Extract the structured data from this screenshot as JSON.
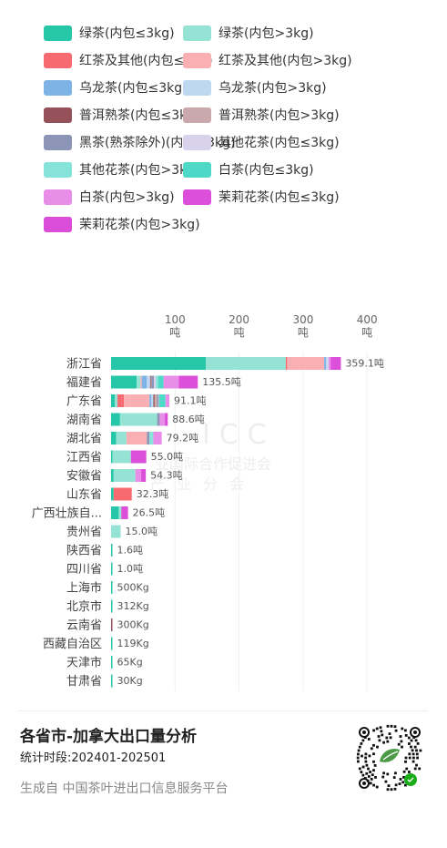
{
  "legend": [
    {
      "label": "绿茶(内包≤3kg)",
      "color": "#26c6a8"
    },
    {
      "label": "绿茶(内包>3kg)",
      "color": "#95e3d4"
    },
    {
      "label": "红茶及其他(内包≤3kg)",
      "color": "#f76a6f"
    },
    {
      "label": "红茶及其他(内包>3kg)",
      "color": "#fab0b3"
    },
    {
      "label": "乌龙茶(内包≤3kg)",
      "color": "#7eb3e6"
    },
    {
      "label": "乌龙茶(内包>3kg)",
      "color": "#bed8f2"
    },
    {
      "label": "普洱熟茶(内包≤3kg)",
      "color": "#96525b"
    },
    {
      "label": "普洱熟茶(内包>3kg)",
      "color": "#caa8ab"
    },
    {
      "label": "黑茶(熟茶除外)(内包≤3kg)",
      "color": "#8c95b5"
    },
    {
      "label": "其他花茶(内包≤3kg)",
      "color": "#d9d2ec"
    },
    {
      "label": "其他花茶(内包>3kg)",
      "color": "#86e3d9"
    },
    {
      "label": "白茶(内包≤3kg)",
      "color": "#4ed9c7"
    },
    {
      "label": "白茶(内包>3kg)",
      "color": "#e88de8"
    },
    {
      "label": "茉莉花茶(内包≤3kg)",
      "color": "#db4fdb"
    },
    {
      "label": "茉莉花茶(内包>3kg)",
      "color": "#d94dd9"
    }
  ],
  "chart_data": {
    "type": "bar",
    "orientation": "horizontal",
    "stacked": true,
    "unit": "吨",
    "xticks": [
      {
        "value": 100,
        "label": "100",
        "unit": "吨"
      },
      {
        "value": 200,
        "label": "200",
        "unit": "吨"
      },
      {
        "value": 300,
        "label": "300",
        "unit": "吨"
      },
      {
        "value": 400,
        "label": "400",
        "unit": "吨"
      }
    ],
    "xlim": [
      0,
      400
    ],
    "grid": true,
    "series_names": [
      "绿茶(内包≤3kg)",
      "绿茶(内包>3kg)",
      "红茶及其他(内包≤3kg)",
      "红茶及其他(内包>3kg)",
      "乌龙茶(内包≤3kg)",
      "乌龙茶(内包>3kg)",
      "普洱熟茶(内包≤3kg)",
      "普洱熟茶(内包>3kg)",
      "黑茶(熟茶除外)(内包≤3kg)",
      "其他花茶(内包≤3kg)",
      "其他花茶(内包>3kg)",
      "白茶(内包≤3kg)",
      "白茶(内包>3kg)",
      "茉莉花茶(内包≤3kg)",
      "茉莉花茶(内包>3kg)"
    ],
    "rows": [
      {
        "province": "浙江省",
        "total_label": "359.1吨",
        "segments": [
          148,
          125,
          2,
          58,
          3,
          2,
          0,
          0,
          0,
          2,
          0,
          0,
          3,
          16.1,
          0
        ]
      },
      {
        "province": "福建省",
        "total_label": "135.5吨",
        "segments": [
          40,
          6,
          0,
          2,
          8,
          5,
          1,
          1,
          4,
          3,
          4,
          8,
          24,
          29.5,
          0
        ]
      },
      {
        "province": "广东省",
        "total_label": "91.1吨",
        "segments": [
          6,
          4,
          10,
          40,
          3,
          3,
          2,
          4,
          2,
          1,
          0,
          10,
          6.1,
          0,
          0
        ]
      },
      {
        "province": "湖南省",
        "total_label": "88.6吨",
        "segments": [
          14,
          58,
          0,
          0,
          0,
          0,
          0,
          0,
          4,
          0,
          0,
          0,
          8,
          4.6,
          0
        ]
      },
      {
        "province": "湖北省",
        "total_label": "79.2吨",
        "segments": [
          8,
          16,
          0,
          32,
          0,
          0,
          0,
          0,
          4,
          0,
          6,
          0,
          13.2,
          0,
          0
        ]
      },
      {
        "province": "江西省",
        "total_label": "55.0吨",
        "segments": [
          2,
          29,
          0,
          0,
          0,
          0,
          0,
          0,
          0,
          0,
          0,
          0,
          0,
          24,
          0
        ]
      },
      {
        "province": "安徽省",
        "total_label": "54.3吨",
        "segments": [
          4,
          34,
          0,
          0,
          0,
          0,
          0,
          0,
          0,
          0,
          0,
          0,
          9,
          7.3,
          0
        ]
      },
      {
        "province": "山东省",
        "total_label": "32.3吨",
        "segments": [
          4,
          0,
          28.3,
          0,
          0,
          0,
          0,
          0,
          0,
          0,
          0,
          0,
          0,
          0,
          0
        ]
      },
      {
        "province": "广西壮族自...",
        "total_label": "26.5吨",
        "segments": [
          12,
          4,
          0,
          0,
          0,
          0,
          0,
          0,
          0,
          0,
          0,
          0,
          0,
          10.5,
          0
        ]
      },
      {
        "province": "贵州省",
        "total_label": "15.0吨",
        "segments": [
          0,
          15,
          0,
          0,
          0,
          0,
          0,
          0,
          0,
          0,
          0,
          0,
          0,
          0,
          0
        ]
      },
      {
        "province": "陕西省",
        "total_label": "1.6吨",
        "segments": [
          1.6,
          0,
          0,
          0,
          0,
          0,
          0,
          0,
          0,
          0,
          0,
          0,
          0,
          0,
          0
        ]
      },
      {
        "province": "四川省",
        "total_label": "1.0吨",
        "segments": [
          1,
          0,
          0,
          0,
          0,
          0,
          0,
          0,
          0,
          0,
          0,
          0,
          0,
          0,
          0
        ]
      },
      {
        "province": "上海市",
        "total_label": "500Kg",
        "segments": [
          0.5,
          0,
          0,
          0,
          0,
          0,
          0,
          0,
          0,
          0,
          0,
          0,
          0,
          0,
          0
        ]
      },
      {
        "province": "北京市",
        "total_label": "312Kg",
        "segments": [
          0.312,
          0,
          0,
          0,
          0,
          0,
          0,
          0,
          0,
          0,
          0,
          0,
          0,
          0,
          0
        ]
      },
      {
        "province": "云南省",
        "total_label": "300Kg",
        "segments": [
          0,
          0,
          0,
          0,
          0,
          0,
          0.3,
          0,
          0,
          0,
          0,
          0,
          0,
          0,
          0
        ]
      },
      {
        "province": "西藏自治区",
        "total_label": "119Kg",
        "segments": [
          0.119,
          0,
          0,
          0,
          0,
          0,
          0,
          0,
          0,
          0,
          0,
          0,
          0,
          0,
          0
        ]
      },
      {
        "province": "天津市",
        "total_label": "65Kg",
        "segments": [
          0.065,
          0,
          0,
          0,
          0,
          0,
          0,
          0,
          0,
          0,
          0,
          0,
          0,
          0,
          0
        ]
      },
      {
        "province": "甘肃省",
        "total_label": "30Kg",
        "segments": [
          0.03,
          0,
          0,
          0,
          0,
          0,
          0,
          0,
          0,
          0,
          0,
          0,
          0,
          0,
          0
        ]
      }
    ]
  },
  "watermark": {
    "line1": "ICC",
    "line2": "业国际合作促进会",
    "line3": "产 业 分 会"
  },
  "footer": {
    "title": "各省市-加拿大出口量分析",
    "period": "统计时段:202401-202501",
    "source": "生成自 中国茶叶进出口信息服务平台"
  }
}
